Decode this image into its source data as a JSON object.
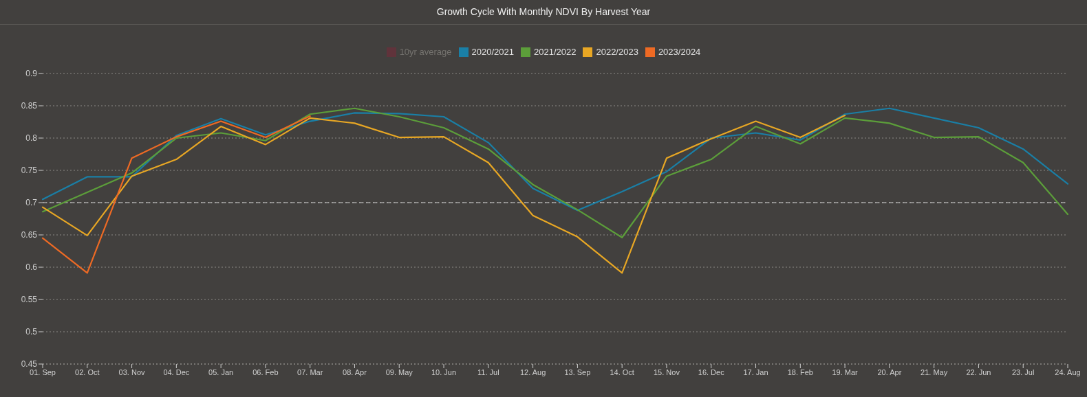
{
  "chart_data": {
    "type": "line",
    "title": "Growth Cycle With Monthly NDVI By Harvest Year",
    "categories": [
      "01. Sep",
      "02. Oct",
      "03. Nov",
      "04. Dec",
      "05. Jan",
      "06. Feb",
      "07. Mar",
      "08. Apr",
      "09. May",
      "10. Jun",
      "11. Jul",
      "12. Aug",
      "13. Sep",
      "14. Oct",
      "15. Nov",
      "16. Dec",
      "17. Jan",
      "18. Feb",
      "19. Mar",
      "20. Apr",
      "21. May",
      "22. Jun",
      "23. Jul",
      "24. Aug"
    ],
    "series": [
      {
        "name": "10yr average",
        "color": "#6b2f3b",
        "values": [
          null,
          null,
          null,
          null,
          null,
          null,
          null,
          null,
          null,
          null,
          null,
          null,
          null,
          null,
          null,
          null,
          null,
          null,
          null,
          null,
          null,
          null,
          null,
          null
        ]
      },
      {
        "name": "2020/2021",
        "color": "#1a7fa6",
        "values": [
          0.705,
          0.74,
          0.74,
          0.804,
          0.83,
          0.805,
          0.826,
          0.839,
          0.838,
          0.833,
          0.793,
          0.722,
          0.688,
          0.717,
          0.748,
          0.8,
          0.808,
          0.797,
          0.837,
          0.846,
          0.831,
          0.816,
          0.783,
          0.729
        ]
      },
      {
        "name": "2021/2022",
        "color": "#5c9e3a",
        "values": [
          0.686,
          0.716,
          0.746,
          0.8,
          0.808,
          0.796,
          0.837,
          0.846,
          0.833,
          0.816,
          0.783,
          0.728,
          0.689,
          0.646,
          0.741,
          0.767,
          0.818,
          0.791,
          0.831,
          0.823,
          0.801,
          0.802,
          0.762,
          0.682
        ]
      },
      {
        "name": "2022/2023",
        "color": "#e8a724",
        "values": [
          0.693,
          0.649,
          0.741,
          0.767,
          0.818,
          0.79,
          0.831,
          0.823,
          0.801,
          0.802,
          0.762,
          0.68,
          0.647,
          0.591,
          0.769,
          0.799,
          0.826,
          0.801,
          0.835,
          null,
          null,
          null,
          null,
          null
        ]
      },
      {
        "name": "2023/2024",
        "color": "#ee6a24",
        "values": [
          0.645,
          0.591,
          0.769,
          0.802,
          0.826,
          0.801,
          0.834,
          null,
          null,
          null,
          null,
          null,
          null,
          null,
          null,
          null,
          null,
          null,
          null,
          null,
          null,
          null,
          null,
          null
        ]
      }
    ],
    "ylim": [
      0.45,
      0.9
    ],
    "yticks": [
      0.45,
      0.5,
      0.55,
      0.6,
      0.65,
      0.7,
      0.75,
      0.8,
      0.85,
      0.9
    ],
    "grid": "y",
    "legend": "top",
    "marker": "none",
    "line_style": "solid",
    "ref_lines": [
      {
        "axis": "y",
        "value": 0.7,
        "color": "#d6d6d6",
        "line_style": "dashed"
      }
    ]
  }
}
